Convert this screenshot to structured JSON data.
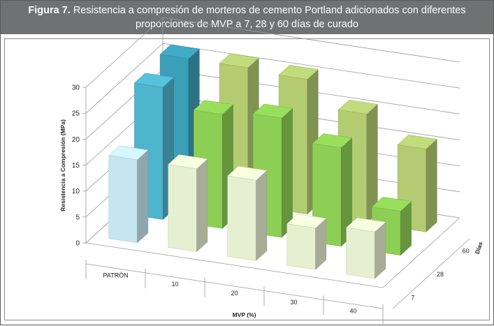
{
  "figure": {
    "label": "Figura 7.",
    "caption_line1": "Resistencia a compresión de morteros de cemento Portland adicionados con diferentes",
    "caption_line2": "proporciones de MVP a 7, 28 y 60 días de curado"
  },
  "chart_data": {
    "type": "bar",
    "subtype": "3d-column",
    "categories": [
      "PATRÓN",
      "10",
      "20",
      "30",
      "40"
    ],
    "depth_categories": [
      "7",
      "28",
      "60"
    ],
    "series": [
      {
        "name": "7",
        "values": [
          16,
          16,
          15.5,
          8,
          9
        ]
      },
      {
        "name": "28",
        "values": [
          25.5,
          22,
          23,
          19,
          8.5
        ]
      },
      {
        "name": "60",
        "values": [
          26.5,
          26.5,
          26,
          21,
          16
        ]
      }
    ],
    "xlabel": "MVP (%)",
    "ylabel": "Resistencia a Compresión (MPa)",
    "zlabel": "Días",
    "ylim": [
      0,
      30
    ],
    "yticks": [
      "0",
      "5",
      "10",
      "15",
      "20",
      "25",
      "30"
    ],
    "grid": true,
    "colors": {
      "patron": {
        "7": "#c5e6f0",
        "28": "#4fb4ce",
        "60": "#3b9fb8"
      },
      "mvp": {
        "7": "#e6efcf",
        "28": "#8dcf55",
        "60": "#b3cc72"
      }
    }
  }
}
